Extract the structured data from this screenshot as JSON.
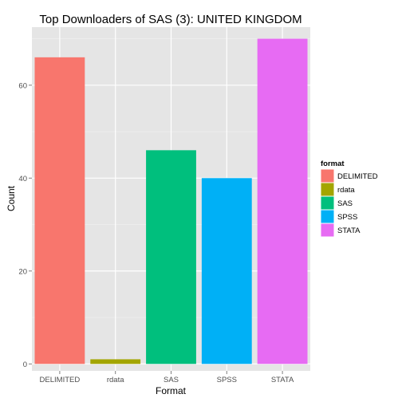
{
  "chart_data": {
    "type": "bar",
    "title": "Top Downloaders of SAS (3):  UNITED KINGDOM",
    "xlabel": "Format",
    "ylabel": "Count",
    "categories": [
      "DELIMITED",
      "rdata",
      "SAS",
      "SPSS",
      "STATA"
    ],
    "values": [
      66,
      1,
      46,
      40,
      70
    ],
    "colors": [
      "#F8766D",
      "#A3A500",
      "#00BF7D",
      "#00B0F6",
      "#E76BF3"
    ],
    "ylim": [
      -1.5,
      72.5
    ],
    "yticks": [
      0,
      20,
      40,
      60
    ],
    "grid": true,
    "legend": {
      "title": "format",
      "placement": "right",
      "entries": [
        "DELIMITED",
        "rdata",
        "SAS",
        "SPSS",
        "STATA"
      ]
    }
  }
}
